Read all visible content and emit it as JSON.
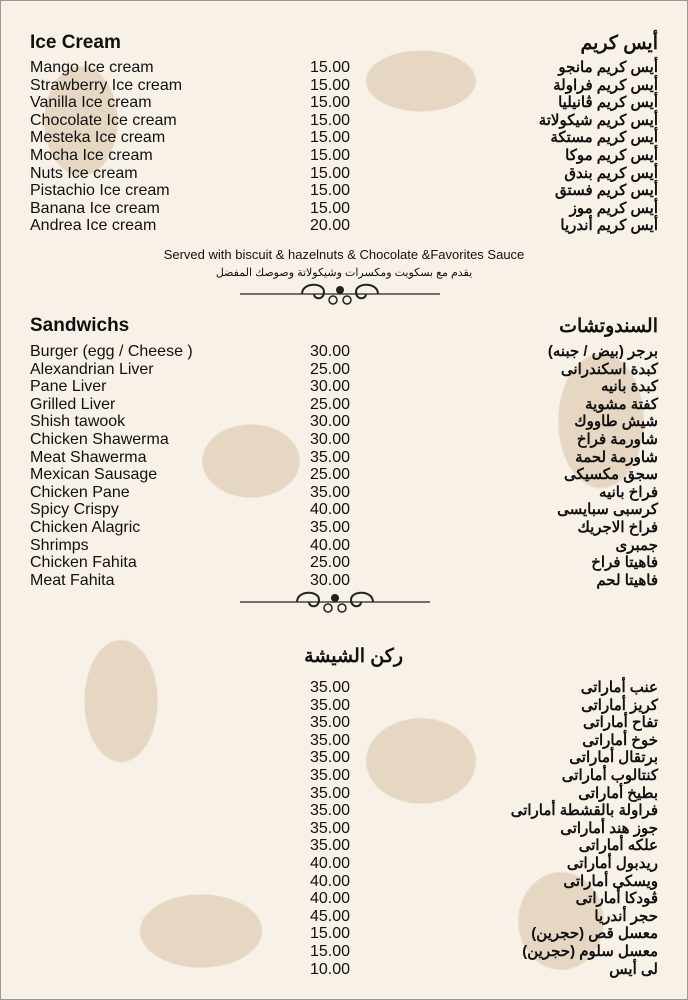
{
  "ice_cream": {
    "title_en": "Ice Cream",
    "title_ar": "أيس كريم",
    "items": [
      {
        "en": "Mango Ice cream",
        "price": "15.00",
        "ar": "أيس كريم مانجو"
      },
      {
        "en": "Strawberry Ice cream",
        "price": "15.00",
        "ar": "أيس كريم فراولة"
      },
      {
        "en": "Vanilla Ice cream",
        "price": "15.00",
        "ar": "أيس كريم ڤانيليا"
      },
      {
        "en": "Chocolate Ice cream",
        "price": "15.00",
        "ar": "أيس كريم شيكولاتة"
      },
      {
        "en": "Mesteka Ice cream",
        "price": "15.00",
        "ar": "أيس كريم مستكة"
      },
      {
        "en": "Mocha Ice cream",
        "price": "15.00",
        "ar": "أيس كريم موكا"
      },
      {
        "en": "Nuts Ice cream",
        "price": "15.00",
        "ar": "أيس كريم بندق"
      },
      {
        "en": "Pistachio Ice cream",
        "price": "15.00",
        "ar": "أيس كريم فستق"
      },
      {
        "en": "Banana Ice cream",
        "price": "15.00",
        "ar": "أيس كريم موز"
      },
      {
        "en": "Andrea Ice cream",
        "price": "20.00",
        "ar": "أيس كريم أندريا"
      }
    ],
    "note_en": "Served with biscuit & hazelnuts & Chocolate &Favorites Sauce",
    "note_ar": "يقدم مع بسكويت ومكسرات وشيكولاتة وصوصك المفضل"
  },
  "sandwiches": {
    "title_en": "Sandwichs",
    "title_ar": "السندوتشات",
    "items": [
      {
        "en": "Burger (egg / Cheese )",
        "price": "30.00",
        "ar": "برجر (بيض / جبنه)"
      },
      {
        "en": "Alexandrian Liver",
        "price": "25.00",
        "ar": "كبدة اسكندرانى"
      },
      {
        "en": "Pane Liver",
        "price": "30.00",
        "ar": "كبدة بانيه"
      },
      {
        "en": "Grilled Liver",
        "price": "25.00",
        "ar": "كفتة مشوية"
      },
      {
        "en": "Shish tawook",
        "price": "30.00",
        "ar": "شيش طاووك"
      },
      {
        "en": "Chicken Shawerma",
        "price": "30.00",
        "ar": "شاورمة فراخ"
      },
      {
        "en": "Meat Shawerma",
        "price": "35.00",
        "ar": "شاورمة لحمة"
      },
      {
        "en": "Mexican Sausage",
        "price": "25.00",
        "ar": "سجق مكسيكى"
      },
      {
        "en": "Chicken Pane",
        "price": "35.00",
        "ar": "فراخ بانيه"
      },
      {
        "en": "Spicy Crispy",
        "price": "40.00",
        "ar": "كرسبى سبايسى"
      },
      {
        "en": "Chicken Alagric",
        "price": "35.00",
        "ar": "فراخ الاجريك"
      },
      {
        "en": "Shrimps",
        "price": "40.00",
        "ar": "جمبرى"
      },
      {
        "en": "Chicken Fahita",
        "price": "25.00",
        "ar": "فاهيتا فراخ"
      },
      {
        "en": "Meat Fahita",
        "price": "30.00",
        "ar": "فاهيتا لحم"
      }
    ]
  },
  "shisha": {
    "title_ar": "ركن الشيشة",
    "items": [
      {
        "price": "35.00",
        "ar": "عنب أماراتى"
      },
      {
        "price": "35.00",
        "ar": "كريز أماراتى"
      },
      {
        "price": "35.00",
        "ar": "تفاح أماراتى"
      },
      {
        "price": "35.00",
        "ar": "خوخ أماراتى"
      },
      {
        "price": "35.00",
        "ar": "برتقال أماراتى"
      },
      {
        "price": "35.00",
        "ar": "كنتالوب أماراتى"
      },
      {
        "price": "35.00",
        "ar": "بطيخ أماراتى"
      },
      {
        "price": "35.00",
        "ar": "فراولة بالقشطة أماراتى"
      },
      {
        "price": "35.00",
        "ar": "جوز هند أماراتى"
      },
      {
        "price": "35.00",
        "ar": "علكه أماراتى"
      },
      {
        "price": "40.00",
        "ar": "ريدبول أماراتى"
      },
      {
        "price": "40.00",
        "ar": "ويسكى أماراتى"
      },
      {
        "price": "40.00",
        "ar": "ڤودكا أماراتى"
      },
      {
        "price": "45.00",
        "ar": "حجر أندريا"
      },
      {
        "price": "15.00",
        "ar": "معسل قص (حجرين)"
      },
      {
        "price": "15.00",
        "ar": "معسل سلوم (حجرين)"
      },
      {
        "price": "10.00",
        "ar": "لى أيس"
      }
    ]
  },
  "colors": {
    "background": "#f7f1e8",
    "pattern": "#e6d7c3",
    "text": "#111111"
  }
}
